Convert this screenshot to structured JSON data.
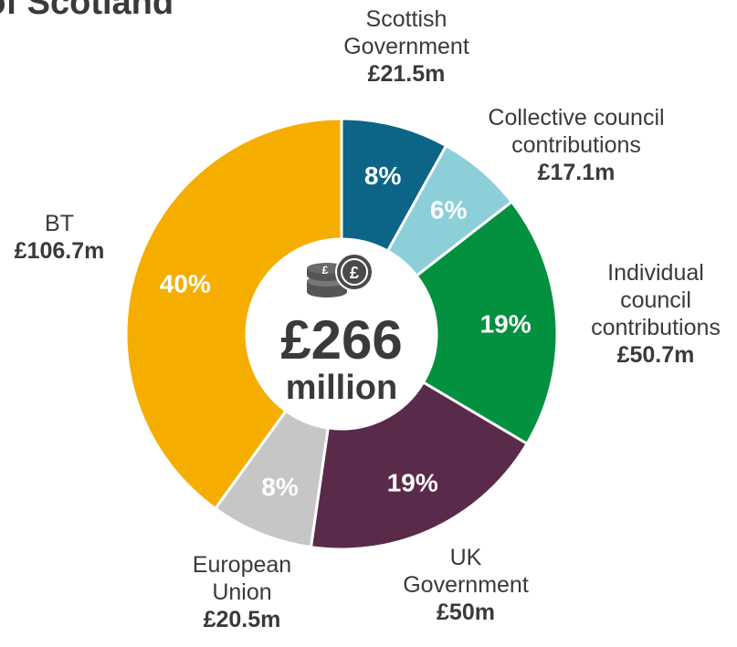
{
  "title": "t of Scotland",
  "center": {
    "amount": "£266",
    "unit": "million",
    "icon": "coins-icon"
  },
  "chart_data": {
    "type": "pie",
    "variant": "donut",
    "total": 266,
    "slices": [
      {
        "name": "Scottish\nGovernment",
        "value": 21.5,
        "value_label": "£21.5m",
        "pct_label": "8%",
        "color": "#0c6587",
        "pct_color": "#ffffff"
      },
      {
        "name": "Collective council\ncontributions",
        "value": 17.1,
        "value_label": "£17.1m",
        "pct_label": "6%",
        "color": "#8dcfd9",
        "pct_color": "#ffffff"
      },
      {
        "name": "Individual\ncouncil\ncontributions",
        "value": 50.7,
        "value_label": "£50.7m",
        "pct_label": "19%",
        "color": "#03913f",
        "pct_color": "#ffffff"
      },
      {
        "name": "UK\nGovernment",
        "value": 50,
        "value_label": "£50m",
        "pct_label": "19%",
        "color": "#5a2a4b",
        "pct_color": "#ffffff"
      },
      {
        "name": "European\nUnion",
        "value": 20.5,
        "value_label": "£20.5m",
        "pct_label": "8%",
        "color": "#c6c6c6",
        "pct_color": "#ffffff"
      },
      {
        "name": "BT",
        "value": 106.7,
        "value_label": "£106.7m",
        "pct_label": "40%",
        "color": "#f5ae00",
        "pct_color": "#ffffff"
      }
    ]
  }
}
